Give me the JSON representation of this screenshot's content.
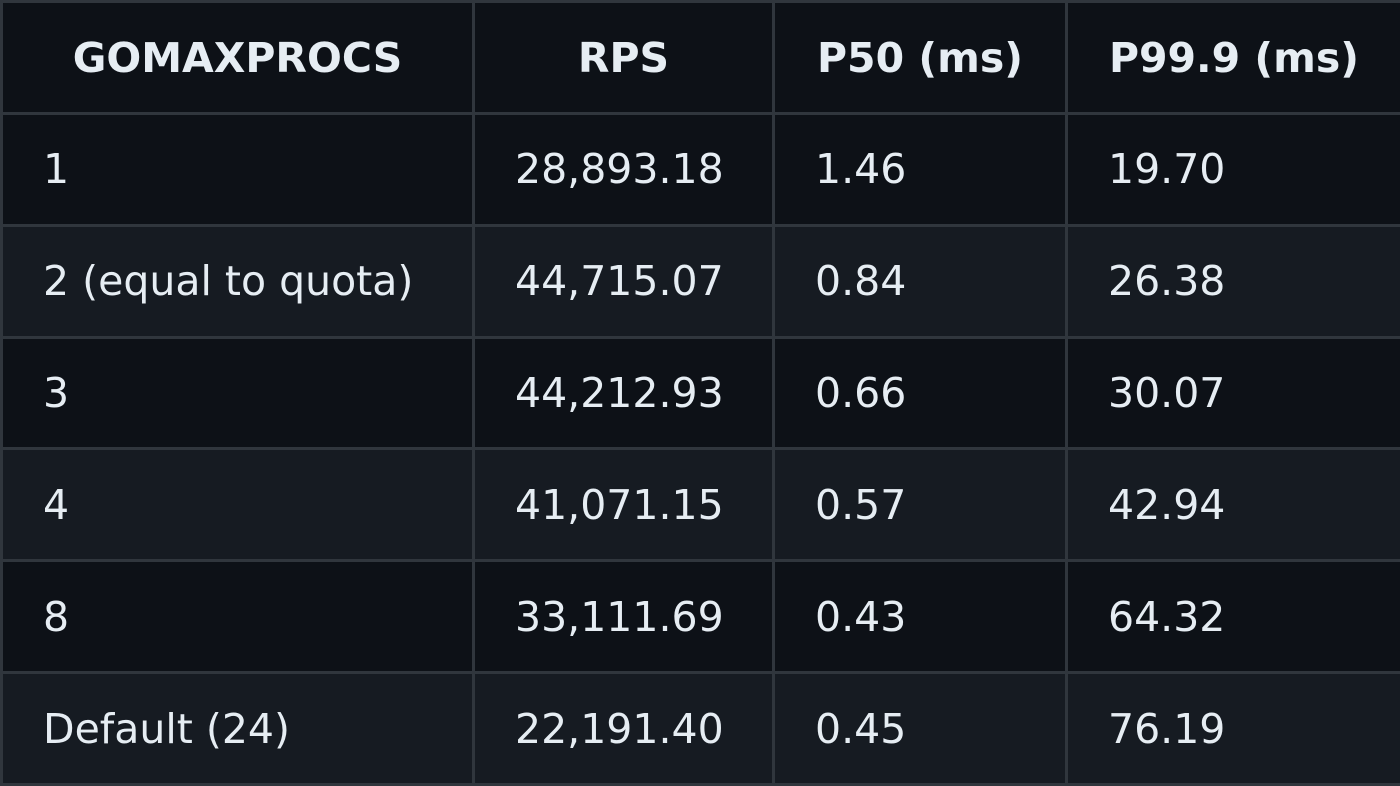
{
  "table": {
    "headers": [
      "GOMAXPROCS",
      "RPS",
      "P50 (ms)",
      "P99.9 (ms)"
    ],
    "rows": [
      [
        "1",
        "28,893.18",
        "1.46",
        "19.70"
      ],
      [
        "2 (equal to quota)",
        "44,715.07",
        "0.84",
        "26.38"
      ],
      [
        "3",
        "44,212.93",
        "0.66",
        "30.07"
      ],
      [
        "4",
        "41,071.15",
        "0.57",
        "42.94"
      ],
      [
        "8",
        "33,111.69",
        "0.43",
        "64.32"
      ],
      [
        "Default (24)",
        "22,191.40",
        "0.45",
        "76.19"
      ]
    ]
  },
  "colors": {
    "background": "#0d1117",
    "row_alt": "#161b22",
    "border": "#30363d",
    "text": "#e6edf3"
  }
}
